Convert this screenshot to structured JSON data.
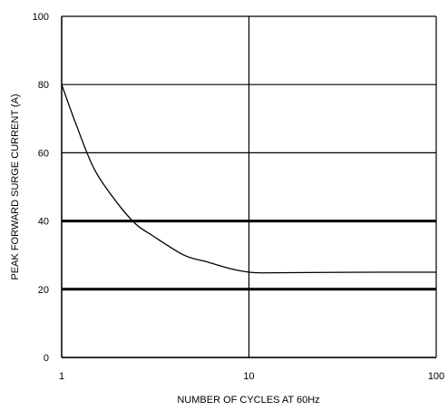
{
  "chart_data": {
    "type": "line",
    "title": "",
    "xlabel": "NUMBER OF CYCLES AT 60Hz",
    "ylabel": "PEAK FORWARD SURGE CURRENT (A)",
    "x_scale": "log",
    "xlim": [
      1,
      100
    ],
    "ylim": [
      0,
      100
    ],
    "x_ticks": [
      1,
      10,
      100
    ],
    "y_ticks": [
      0,
      20,
      40,
      60,
      80,
      100
    ],
    "x_tick_labels": [
      "1",
      "10",
      "100"
    ],
    "y_tick_labels": [
      "0",
      "20",
      "40",
      "60",
      "80",
      "100"
    ],
    "grid": true,
    "line_color": "#000000",
    "series": [
      {
        "x": [
          1,
          1.2,
          1.5,
          2,
          2.5,
          3,
          4.5,
          6,
          8,
          10,
          12,
          20,
          50,
          100
        ],
        "values": [
          80,
          68,
          55,
          45,
          39,
          36,
          30,
          28,
          26,
          25,
          24.8,
          24.9,
          25,
          25
        ]
      }
    ]
  }
}
